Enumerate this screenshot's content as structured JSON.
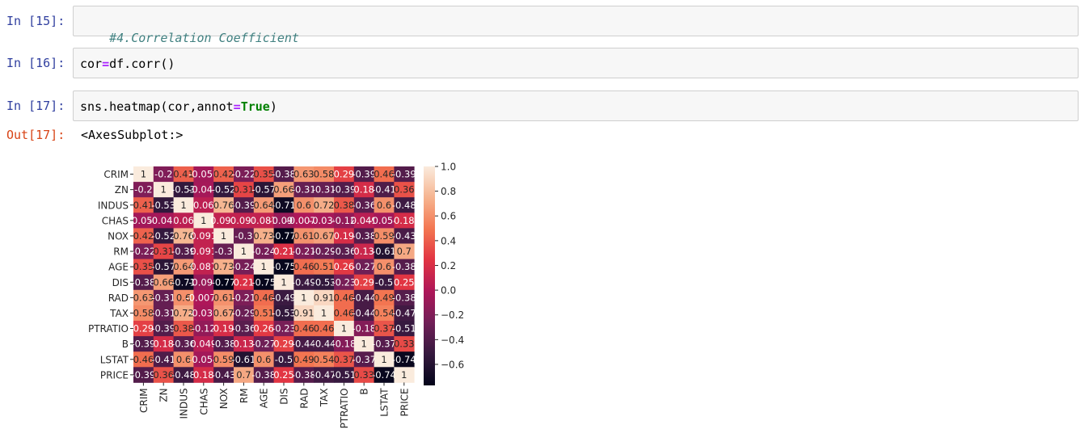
{
  "cells": [
    {
      "prompt": "In [15]:",
      "code": {
        "comment": "#4.Correlation Coefficient"
      }
    },
    {
      "prompt": "In [16]:",
      "code": {
        "lhs": "cor",
        "op": "=",
        "rhs": "df.corr()"
      }
    },
    {
      "prompt": "In [17]:",
      "code": {
        "pre": "sns.heatmap(cor,annot",
        "op": "=",
        "kw": "True",
        "post": ")"
      }
    }
  ],
  "output": {
    "prompt": "Out[17]:",
    "text": "<AxesSubplot:>"
  },
  "chart_data": {
    "type": "heatmap",
    "rows": [
      "CRIM",
      "ZN",
      "INDUS",
      "CHAS",
      "NOX",
      "RM",
      "AGE",
      "DIS",
      "RAD",
      "TAX",
      "PTRATIO",
      "B",
      "LSTAT",
      "PRICE"
    ],
    "cols": [
      "CRIM",
      "ZN",
      "INDUS",
      "CHAS",
      "NOX",
      "RM",
      "AGE",
      "DIS",
      "RAD",
      "TAX",
      "PTRATIO",
      "B",
      "LSTAT",
      "PRICE"
    ],
    "values": [
      [
        1,
        -0.2,
        0.41,
        -0.056,
        0.42,
        -0.22,
        0.35,
        -0.38,
        0.63,
        0.58,
        0.29,
        -0.39,
        0.46,
        -0.39
      ],
      [
        -0.2,
        1,
        -0.53,
        -0.043,
        -0.52,
        0.31,
        -0.57,
        0.66,
        -0.31,
        -0.31,
        -0.39,
        0.18,
        -0.41,
        0.36
      ],
      [
        0.41,
        -0.53,
        1,
        0.063,
        0.76,
        -0.39,
        0.64,
        -0.71,
        0.6,
        0.72,
        0.38,
        -0.36,
        0.6,
        -0.48
      ],
      [
        -0.056,
        -0.043,
        0.063,
        1,
        0.091,
        0.091,
        0.087,
        -0.099,
        -0.0074,
        -0.036,
        -0.12,
        0.049,
        -0.054,
        0.18
      ],
      [
        0.42,
        -0.52,
        0.76,
        0.091,
        1,
        -0.3,
        0.73,
        -0.77,
        0.61,
        0.67,
        0.19,
        -0.38,
        0.59,
        -0.43
      ],
      [
        -0.22,
        0.31,
        -0.39,
        0.091,
        -0.3,
        1,
        -0.24,
        0.21,
        -0.21,
        -0.29,
        -0.36,
        0.13,
        -0.61,
        0.7
      ],
      [
        0.35,
        -0.57,
        0.64,
        0.087,
        0.73,
        -0.24,
        1,
        -0.75,
        0.46,
        0.51,
        0.26,
        -0.27,
        0.6,
        -0.38
      ],
      [
        -0.38,
        0.66,
        -0.71,
        -0.099,
        -0.77,
        0.21,
        -0.75,
        1,
        -0.49,
        -0.53,
        -0.23,
        0.29,
        -0.5,
        0.25
      ],
      [
        0.63,
        -0.31,
        0.6,
        -0.0074,
        0.61,
        -0.21,
        0.46,
        -0.49,
        1,
        0.91,
        0.46,
        -0.44,
        0.49,
        -0.38
      ],
      [
        0.58,
        -0.31,
        0.72,
        -0.036,
        0.67,
        -0.29,
        0.51,
        -0.53,
        0.91,
        1,
        0.46,
        -0.44,
        0.54,
        -0.47
      ],
      [
        0.29,
        -0.39,
        0.38,
        -0.12,
        0.19,
        -0.36,
        0.26,
        -0.23,
        0.46,
        0.46,
        1,
        -0.18,
        0.37,
        -0.51
      ],
      [
        -0.39,
        0.18,
        -0.36,
        0.049,
        -0.38,
        0.13,
        -0.27,
        0.29,
        -0.44,
        -0.44,
        -0.18,
        1,
        -0.37,
        0.33
      ],
      [
        0.46,
        -0.41,
        0.6,
        -0.054,
        0.59,
        -0.61,
        0.6,
        -0.5,
        0.49,
        0.54,
        0.37,
        -0.37,
        1,
        -0.74
      ],
      [
        -0.39,
        0.36,
        -0.48,
        0.18,
        -0.43,
        0.7,
        -0.38,
        0.25,
        -0.38,
        -0.47,
        -0.51,
        0.33,
        -0.74,
        1
      ]
    ],
    "annotations": [
      [
        "1",
        "-0.2",
        "0.41",
        "-0.056",
        "0.42",
        "-0.22",
        "0.35",
        "-0.38",
        "0.63",
        "0.58",
        "0.29",
        "-0.39",
        "0.46",
        "-0.39"
      ],
      [
        "-0.2",
        "1",
        "-0.53",
        "-0.043",
        "-0.52",
        "0.31",
        "-0.57",
        "0.66",
        "-0.31",
        "-0.31",
        "-0.39",
        "0.18",
        "-0.41",
        "0.36"
      ],
      [
        "0.41",
        "-0.53",
        "1",
        "0.06",
        "0.76",
        "-0.39",
        "0.64",
        "-0.71",
        "0.6",
        "0.72",
        "0.38",
        "-0.36",
        "0.6",
        "-0.48"
      ],
      [
        "-0.056",
        "-0.043",
        "0.06",
        "1",
        "0.091",
        "0.091",
        "0.087",
        "-0.099",
        "-0.0074",
        "-0.036",
        "-0.12",
        "0.049",
        "-0.054",
        "0.18"
      ],
      [
        "0.42",
        "-0.52",
        "0.76",
        "0.091",
        "1",
        "-0.3",
        "0.73",
        "-0.77",
        "0.61",
        "0.67",
        "0.19",
        "-0.38",
        "0.59",
        "-0.43"
      ],
      [
        "-0.22",
        "0.31",
        "-0.39",
        "0.091",
        "-0.3",
        "1",
        "-0.24",
        "0.21",
        "-0.21",
        "-0.29",
        "-0.36",
        "0.13",
        "-0.61",
        "0.7"
      ],
      [
        "0.35",
        "-0.57",
        "0.64",
        "0.087",
        "0.73",
        "-0.24",
        "1",
        "-0.75",
        "0.46",
        "0.51",
        "0.26",
        "-0.27",
        "0.6",
        "-0.38"
      ],
      [
        "-0.38",
        "0.66",
        "-0.71",
        "-0.099",
        "-0.77",
        "0.21",
        "-0.75",
        "1",
        "-0.49",
        "-0.53",
        "-0.23",
        "0.29",
        "-0.5",
        "0.25"
      ],
      [
        "0.63",
        "-0.31",
        "0.6",
        "-0.0074",
        "0.61",
        "-0.21",
        "0.46",
        "-0.49",
        "1",
        "0.91",
        "0.46",
        "-0.44",
        "0.49",
        "-0.38"
      ],
      [
        "0.58",
        "-0.31",
        "0.72",
        "-0.036",
        "0.67",
        "-0.29",
        "0.51",
        "-0.53",
        "0.91",
        "1",
        "0.46",
        "-0.44",
        "0.54",
        "-0.47"
      ],
      [
        "0.29",
        "-0.39",
        "0.38",
        "-0.12",
        "0.19",
        "-0.36",
        "0.26",
        "-0.23",
        "0.46",
        "0.46",
        "1",
        "-0.18",
        "0.37",
        "-0.51"
      ],
      [
        "-0.39",
        "0.18",
        "-0.36",
        "0.049",
        "-0.38",
        "0.13",
        "-0.27",
        "0.29",
        "-0.44",
        "-0.44",
        "-0.18",
        "1",
        "-0.37",
        "0.33"
      ],
      [
        "0.46",
        "-0.41",
        "0.6",
        "-0.054",
        "0.59",
        "-0.61",
        "0.6",
        "-0.5",
        "0.49",
        "0.54",
        "0.37",
        "-0.37",
        "1",
        "-0.74"
      ],
      [
        "-0.39",
        "0.36",
        "-0.48",
        "0.18",
        "-0.43",
        "0.7",
        "-0.38",
        "0.25",
        "-0.38",
        "-0.47",
        "-0.51",
        "0.33",
        "-0.74",
        "1"
      ]
    ],
    "colorbar": {
      "range": [
        -0.77,
        1.0
      ],
      "ticks": [
        1.0,
        0.8,
        0.6,
        0.4,
        0.2,
        0.0,
        -0.2,
        -0.4,
        -0.6
      ],
      "tick_labels": [
        "1.0",
        "0.8",
        "0.6",
        "0.4",
        "0.2",
        "0.0",
        "−0.2",
        "−0.4",
        "−0.6"
      ]
    },
    "colormap": "rocket",
    "colormap_stops": [
      "#03051a",
      "#35193e",
      "#701f57",
      "#ad1759",
      "#e13342",
      "#f37651",
      "#f6b48f",
      "#faebdd"
    ]
  }
}
